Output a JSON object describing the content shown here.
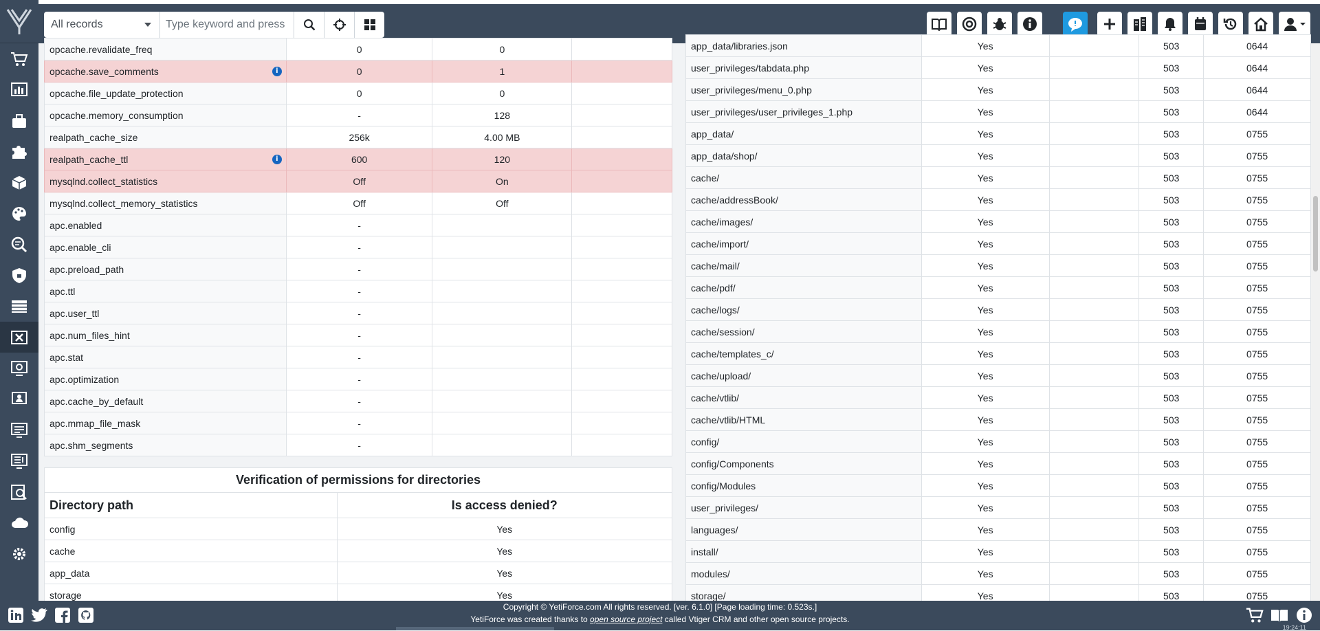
{
  "search": {
    "module_select": "All records",
    "placeholder": "Type keyword and press enter"
  },
  "sidebar": {
    "icons": [
      "yetiforce-logo-icon",
      "cart-icon",
      "chart-icon",
      "briefcase-icon",
      "puzzle-icon",
      "cube-icon",
      "palette-icon",
      "search-report-icon",
      "shield-icon",
      "list-icon",
      "spreadsheet-icon",
      "refresh-screen-icon",
      "presentation-icon",
      "monitor-icon",
      "document-icon",
      "search-doc-icon",
      "cloud-icon",
      "gear-icon"
    ]
  },
  "header_buttons": [
    "book-icon",
    "lifebuoy-icon",
    "bug-icon",
    "info-icon",
    "chat-icon",
    "plus-icon",
    "buildings-icon",
    "bell-icon",
    "calendar-icon",
    "history-icon",
    "home-icon",
    "user-icon"
  ],
  "php_config": {
    "rows": [
      {
        "name": "opcache.revalidate_freq",
        "current": "0",
        "recommended": "0",
        "error": false,
        "info": false
      },
      {
        "name": "opcache.save_comments",
        "current": "0",
        "recommended": "1",
        "error": true,
        "info": true
      },
      {
        "name": "opcache.file_update_protection",
        "current": "0",
        "recommended": "0",
        "error": false,
        "info": false
      },
      {
        "name": "opcache.memory_consumption",
        "current": "-",
        "recommended": "128",
        "error": false,
        "info": false
      },
      {
        "name": "realpath_cache_size",
        "current": "256k",
        "recommended": "4.00 MB",
        "error": false,
        "info": false
      },
      {
        "name": "realpath_cache_ttl",
        "current": "600",
        "recommended": "120",
        "error": true,
        "info": true
      },
      {
        "name": "mysqlnd.collect_statistics",
        "current": "Off",
        "recommended": "On",
        "error": true,
        "info": false
      },
      {
        "name": "mysqlnd.collect_memory_statistics",
        "current": "Off",
        "recommended": "Off",
        "error": false,
        "info": false
      },
      {
        "name": "apc.enabled",
        "current": "-",
        "recommended": "",
        "error": false,
        "info": false
      },
      {
        "name": "apc.enable_cli",
        "current": "-",
        "recommended": "",
        "error": false,
        "info": false
      },
      {
        "name": "apc.preload_path",
        "current": "-",
        "recommended": "",
        "error": false,
        "info": false
      },
      {
        "name": "apc.ttl",
        "current": "-",
        "recommended": "",
        "error": false,
        "info": false
      },
      {
        "name": "apc.user_ttl",
        "current": "-",
        "recommended": "",
        "error": false,
        "info": false
      },
      {
        "name": "apc.num_files_hint",
        "current": "-",
        "recommended": "",
        "error": false,
        "info": false
      },
      {
        "name": "apc.stat",
        "current": "-",
        "recommended": "",
        "error": false,
        "info": false
      },
      {
        "name": "apc.optimization",
        "current": "-",
        "recommended": "",
        "error": false,
        "info": false
      },
      {
        "name": "apc.cache_by_default",
        "current": "-",
        "recommended": "",
        "error": false,
        "info": false
      },
      {
        "name": "apc.mmap_file_mask",
        "current": "-",
        "recommended": "",
        "error": false,
        "info": false
      },
      {
        "name": "apc.shm_segments",
        "current": "-",
        "recommended": "",
        "error": false,
        "info": false
      }
    ]
  },
  "dir_verification": {
    "title": "Verification of permissions for directories",
    "col_path": "Directory path",
    "col_denied": "Is access denied?",
    "rows": [
      {
        "path": "config",
        "denied": "Yes"
      },
      {
        "path": "cache",
        "denied": "Yes"
      },
      {
        "path": "app_data",
        "denied": "Yes"
      },
      {
        "path": "storage",
        "denied": "Yes"
      }
    ]
  },
  "file_permissions": {
    "rows": [
      {
        "path": "app_data/libraries.json",
        "writable": "Yes",
        "owner": "503",
        "perms": "0644"
      },
      {
        "path": "user_privileges/tabdata.php",
        "writable": "Yes",
        "owner": "503",
        "perms": "0644"
      },
      {
        "path": "user_privileges/menu_0.php",
        "writable": "Yes",
        "owner": "503",
        "perms": "0644"
      },
      {
        "path": "user_privileges/user_privileges_1.php",
        "writable": "Yes",
        "owner": "503",
        "perms": "0644"
      },
      {
        "path": "app_data/",
        "writable": "Yes",
        "owner": "503",
        "perms": "0755"
      },
      {
        "path": "app_data/shop/",
        "writable": "Yes",
        "owner": "503",
        "perms": "0755"
      },
      {
        "path": "cache/",
        "writable": "Yes",
        "owner": "503",
        "perms": "0755"
      },
      {
        "path": "cache/addressBook/",
        "writable": "Yes",
        "owner": "503",
        "perms": "0755"
      },
      {
        "path": "cache/images/",
        "writable": "Yes",
        "owner": "503",
        "perms": "0755"
      },
      {
        "path": "cache/import/",
        "writable": "Yes",
        "owner": "503",
        "perms": "0755"
      },
      {
        "path": "cache/mail/",
        "writable": "Yes",
        "owner": "503",
        "perms": "0755"
      },
      {
        "path": "cache/pdf/",
        "writable": "Yes",
        "owner": "503",
        "perms": "0755"
      },
      {
        "path": "cache/logs/",
        "writable": "Yes",
        "owner": "503",
        "perms": "0755"
      },
      {
        "path": "cache/session/",
        "writable": "Yes",
        "owner": "503",
        "perms": "0755"
      },
      {
        "path": "cache/templates_c/",
        "writable": "Yes",
        "owner": "503",
        "perms": "0755"
      },
      {
        "path": "cache/upload/",
        "writable": "Yes",
        "owner": "503",
        "perms": "0755"
      },
      {
        "path": "cache/vtlib/",
        "writable": "Yes",
        "owner": "503",
        "perms": "0755"
      },
      {
        "path": "cache/vtlib/HTML",
        "writable": "Yes",
        "owner": "503",
        "perms": "0755"
      },
      {
        "path": "config/",
        "writable": "Yes",
        "owner": "503",
        "perms": "0755"
      },
      {
        "path": "config/Components",
        "writable": "Yes",
        "owner": "503",
        "perms": "0755"
      },
      {
        "path": "config/Modules",
        "writable": "Yes",
        "owner": "503",
        "perms": "0755"
      },
      {
        "path": "user_privileges/",
        "writable": "Yes",
        "owner": "503",
        "perms": "0755"
      },
      {
        "path": "languages/",
        "writable": "Yes",
        "owner": "503",
        "perms": "0755"
      },
      {
        "path": "install/",
        "writable": "Yes",
        "owner": "503",
        "perms": "0755"
      },
      {
        "path": "modules/",
        "writable": "Yes",
        "owner": "503",
        "perms": "0755"
      },
      {
        "path": "storage/",
        "writable": "Yes",
        "owner": "503",
        "perms": "0755"
      }
    ]
  },
  "footer": {
    "line1": "Copyright © YetiForce.com All rights reserved. [ver. 6.1.0] [Page loading time: 0.523s.]",
    "line2_pre": "YetiForce was created thanks to ",
    "line2_link": "open source project",
    "line2_post": " called Vtiger CRM and other open source projects.",
    "time": "19:24:11",
    "social": [
      "linkedin-icon",
      "twitter-icon",
      "facebook-icon",
      "github-icon"
    ],
    "right_icons": [
      "cart-icon",
      "book-icon",
      "info-icon"
    ]
  },
  "colors": {
    "dark": "#3b4a5c",
    "error_row": "#f5d3d4",
    "info_blue": "#1565c0",
    "chat_blue": "#1f9ae0"
  }
}
